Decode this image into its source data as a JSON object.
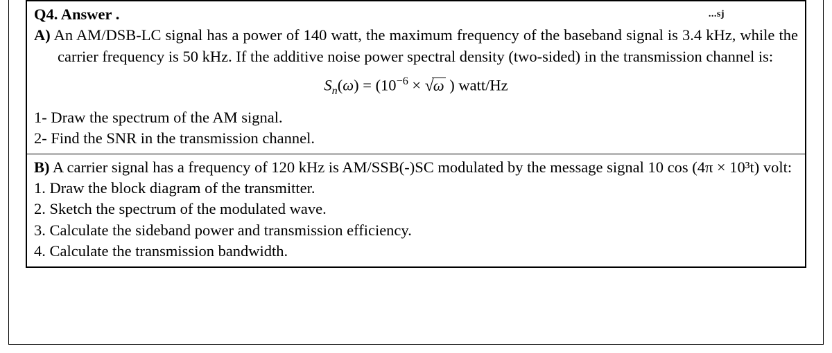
{
  "question_label": "Q4. Answer .",
  "artifact": "...sj",
  "partA": {
    "label": "A)",
    "body_after_label": " An AM/DSB-LC signal has a power of 140 watt, the maximum frequency of the baseband signal is 3.4 kHz, while the carrier frequency is 50 kHz. If the additive noise power spectral density (two-sided) in the transmission channel is:",
    "formula": {
      "S": "S",
      "n": "n",
      "open": "(",
      "omega": "ω",
      "close": ")",
      "eq": " = (10",
      "exp": "−6",
      "times": " × ",
      "sqrt_inner": "ω",
      "closep": " )",
      "units": " watt/Hz"
    },
    "q1": "1- Draw the spectrum of the AM signal.",
    "q2": "2- Find the SNR in the transmission channel."
  },
  "partB": {
    "label": "B)",
    "body_after_label": " A carrier signal has a frequency of 120 kHz is AM/SSB(-)SC modulated by the message signal 10 cos (4π × 10³t) volt:",
    "q1": "1. Draw the block diagram of the transmitter.",
    "q2": "2. Sketch the spectrum of the modulated wave.",
    "q3": "3. Calculate the sideband power and transmission efficiency.",
    "q4": "4. Calculate the transmission bandwidth."
  }
}
